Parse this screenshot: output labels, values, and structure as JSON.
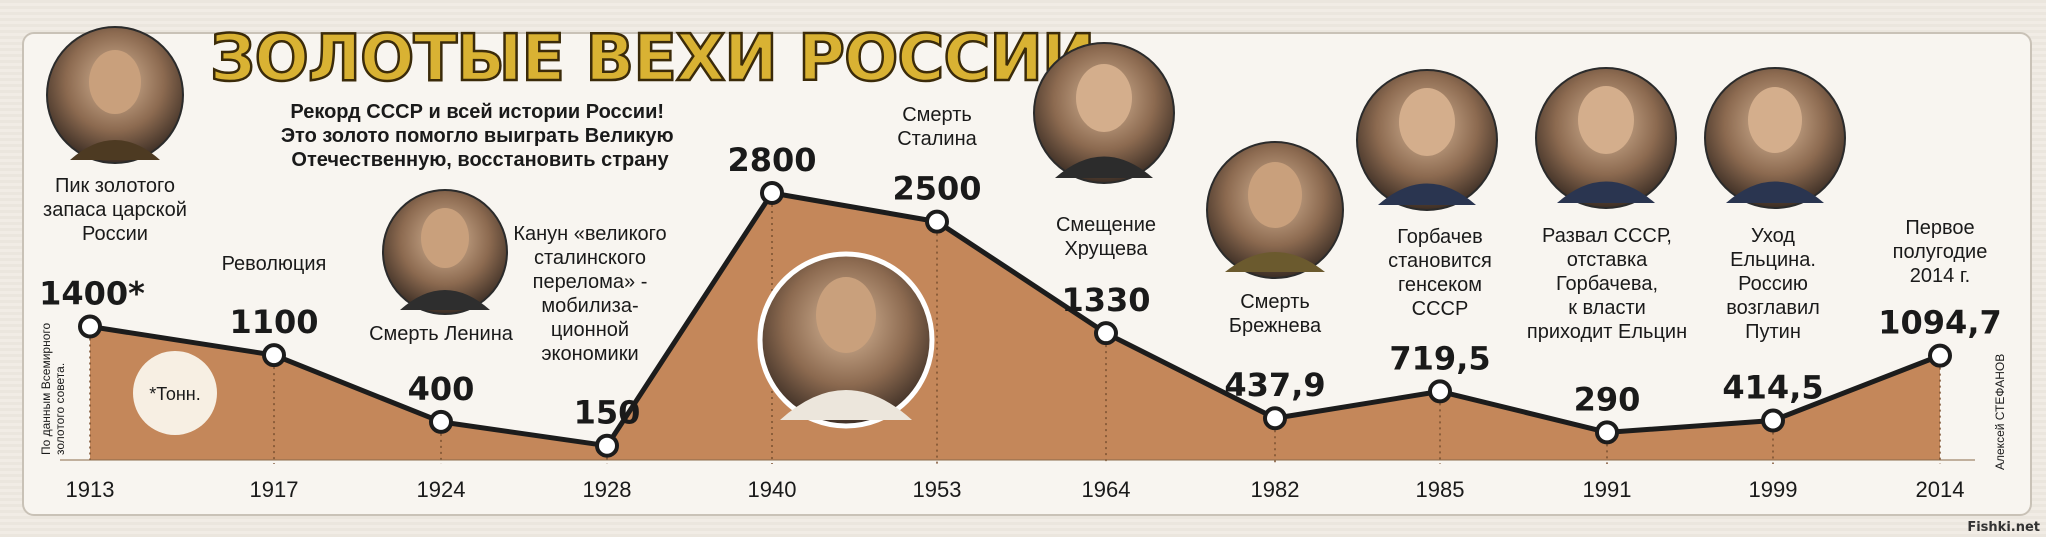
{
  "chart_data": {
    "type": "area",
    "title": "ЗОЛОТЫЕ ВЕХИ РОССИИ",
    "x": [
      "1913",
      "1917",
      "1924",
      "1928",
      "1940",
      "1953",
      "1964",
      "1982",
      "1985",
      "1991",
      "1999",
      "2014"
    ],
    "values": [
      1400,
      1100,
      400,
      150,
      2800,
      2500,
      1330,
      437.9,
      719.5,
      290,
      414.5,
      1094.7
    ],
    "value_labels": [
      "1400*",
      "1100",
      "400",
      "150",
      "2800",
      "2500",
      "1330",
      "437,9",
      "719,5",
      "290",
      "414,5",
      "1094,7"
    ],
    "events": [
      [
        "Пик золотого",
        "запаса царской",
        "России"
      ],
      [
        "Революция"
      ],
      [
        "Смерть Ленина"
      ],
      [
        "Канун «великого",
        "сталинского",
        "перелома» -",
        "мобилиза-",
        "ционной",
        "экономики"
      ],
      [],
      [
        "Смерть",
        "Сталина"
      ],
      [
        "Смещение",
        "Хрущева"
      ],
      [
        "Смерть",
        "Брежнева"
      ],
      [
        "Горбачев",
        "становится",
        "генсеком",
        "СССР"
      ],
      [
        "Развал СССР,",
        "отставка",
        "Горбачева,",
        "к власти",
        "приходит Ельцин"
      ],
      [
        "Уход",
        "Ельцина.",
        "Россию",
        "возглавил",
        "Путин"
      ],
      [
        "Первое",
        "полугодие",
        "2014 г."
      ]
    ],
    "note": [
      "Рекорд СССР и всей истории России!",
      "Это золото помогло выиграть Великую",
      "Отечественную, восстановить страну"
    ],
    "unit_note": "*Тонн.",
    "source_note": [
      "По данным Всемирного",
      "золотого совета."
    ],
    "author": "Алексей СТЕФАНОВ",
    "fill_color": "#c4875a",
    "line_color": "#1c1c1c",
    "ylim": [
      0,
      2800
    ],
    "grid": false,
    "legend": "none"
  },
  "watermark": "Fishki.net",
  "colors": {
    "title_gold": "#d9b233",
    "area_fill": "#c4875a",
    "paper": "#f8f5f0"
  }
}
